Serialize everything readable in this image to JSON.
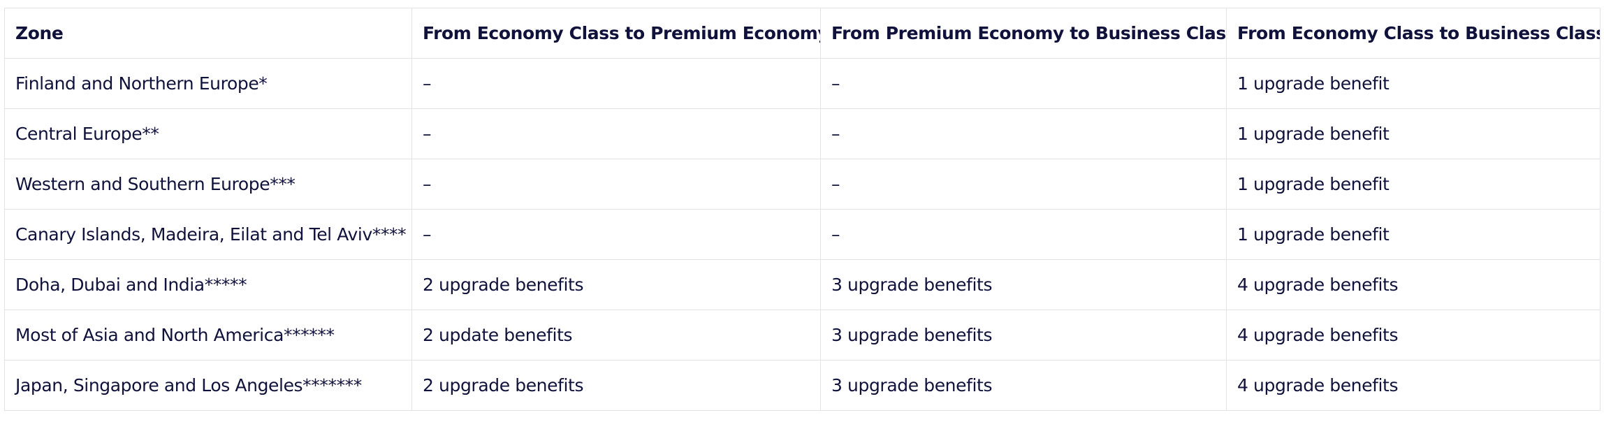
{
  "table": {
    "headers": [
      "Zone",
      "From Economy Class to Premium Economy",
      "From Premium Economy to Business Class",
      "From Economy Class to Business Class"
    ],
    "rows": [
      [
        "Finland and Northern Europe*",
        "–",
        "–",
        "1 upgrade benefit"
      ],
      [
        "Central Europe**",
        "–",
        "–",
        "1 upgrade benefit"
      ],
      [
        "Western and Southern Europe***",
        "–",
        "–",
        "1 upgrade benefit"
      ],
      [
        "Canary Islands, Madeira, Eilat and Tel Aviv****",
        "–",
        "–",
        "1 upgrade benefit"
      ],
      [
        "Doha, Dubai and India*****",
        "2 upgrade benefits",
        "3 upgrade benefits",
        "4 upgrade benefits"
      ],
      [
        "Most of Asia and North America******",
        "2 update benefits",
        "3 upgrade benefits",
        "4 upgrade benefits"
      ],
      [
        "Japan, Singapore and Los Angeles*******",
        "2 upgrade benefits",
        "3 upgrade benefits",
        "4 upgrade benefits"
      ]
    ]
  }
}
